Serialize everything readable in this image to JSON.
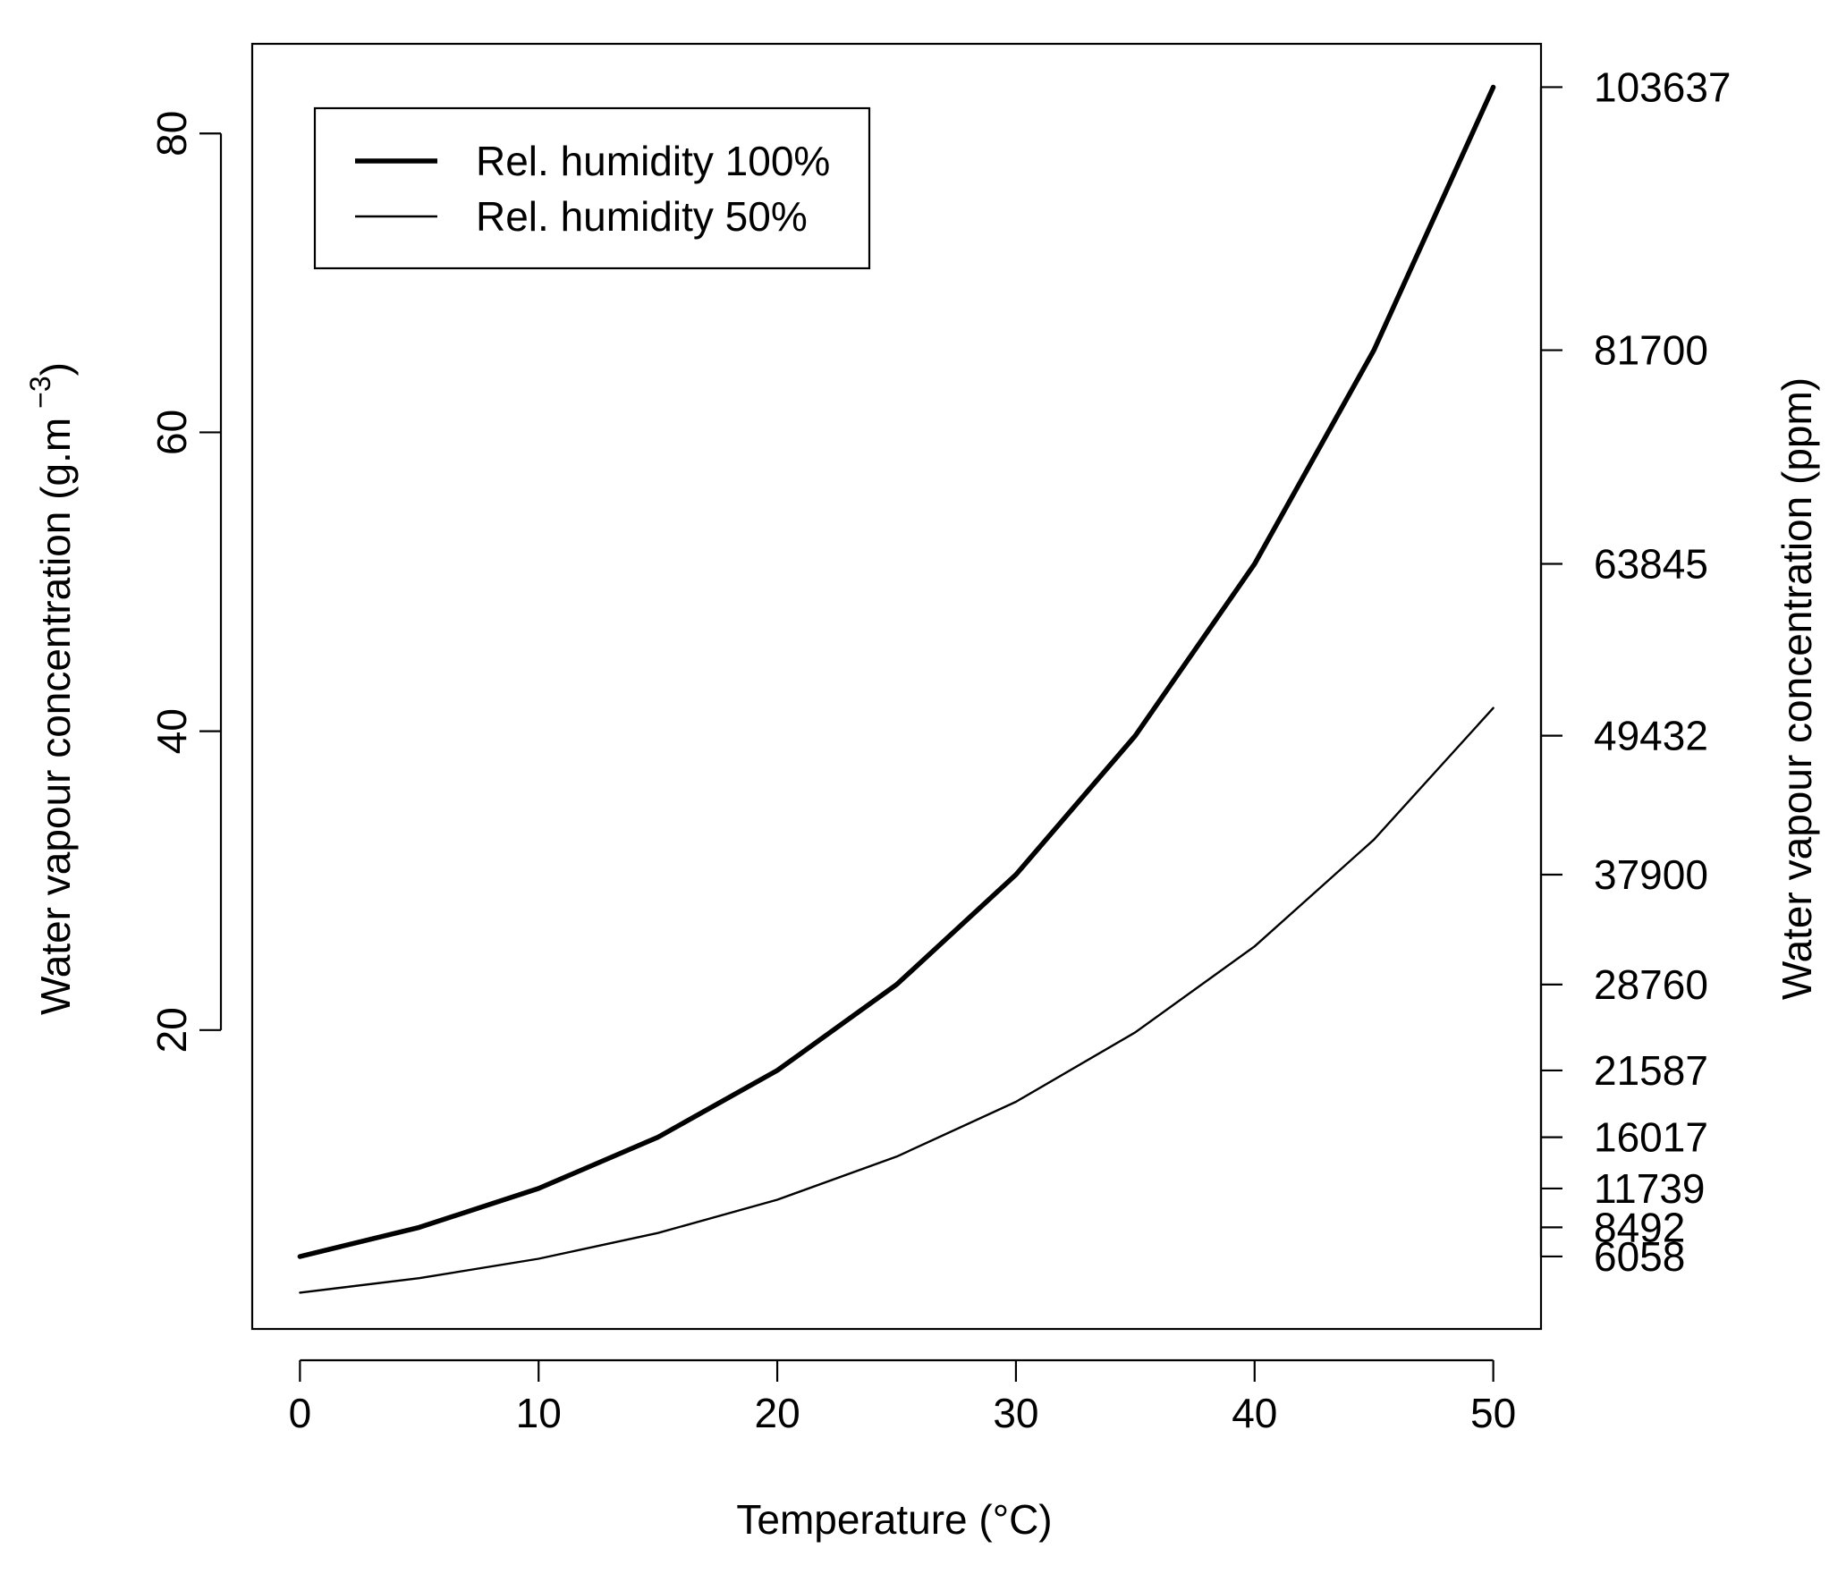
{
  "chart_data": {
    "type": "line",
    "xlabel": "Temperature (°C)",
    "ylabel": "Water vapour concentration (g.m",
    "ylabel_sup": "−3",
    "ylabel_close": ")",
    "ylabel_right": "Water vapour concentration (ppm)",
    "xlim": [
      -2,
      52
    ],
    "ylim": [
      0,
      86
    ],
    "x_ticks": [
      0,
      10,
      20,
      30,
      40,
      50
    ],
    "y_ticks": [
      20,
      40,
      60,
      80
    ],
    "right_axis_ticks": [
      {
        "label": "6058",
        "y": 4.85
      },
      {
        "label": "8492",
        "y": 6.8
      },
      {
        "label": "11739",
        "y": 9.4
      },
      {
        "label": "16017",
        "y": 12.83
      },
      {
        "label": "21587",
        "y": 17.3
      },
      {
        "label": "28760",
        "y": 23.05
      },
      {
        "label": "37900",
        "y": 30.4
      },
      {
        "label": "49432",
        "y": 39.7
      },
      {
        "label": "63845",
        "y": 51.2
      },
      {
        "label": "81700",
        "y": 65.5
      },
      {
        "label": "103637",
        "y": 83.1
      }
    ],
    "x": [
      0,
      5,
      10,
      15,
      20,
      25,
      30,
      35,
      40,
      45,
      50
    ],
    "series": [
      {
        "name": "Rel. humidity 100%",
        "values": [
          4.85,
          6.8,
          9.4,
          12.83,
          17.3,
          23.05,
          30.4,
          39.7,
          51.2,
          65.5,
          83.1
        ],
        "line_weight": "bold"
      },
      {
        "name": "Rel. humidity 50%",
        "values": [
          2.43,
          3.4,
          4.7,
          6.42,
          8.65,
          11.53,
          15.2,
          19.85,
          25.6,
          32.75,
          41.55
        ],
        "line_weight": "thin"
      }
    ],
    "legend": "top-left",
    "grid": false
  }
}
